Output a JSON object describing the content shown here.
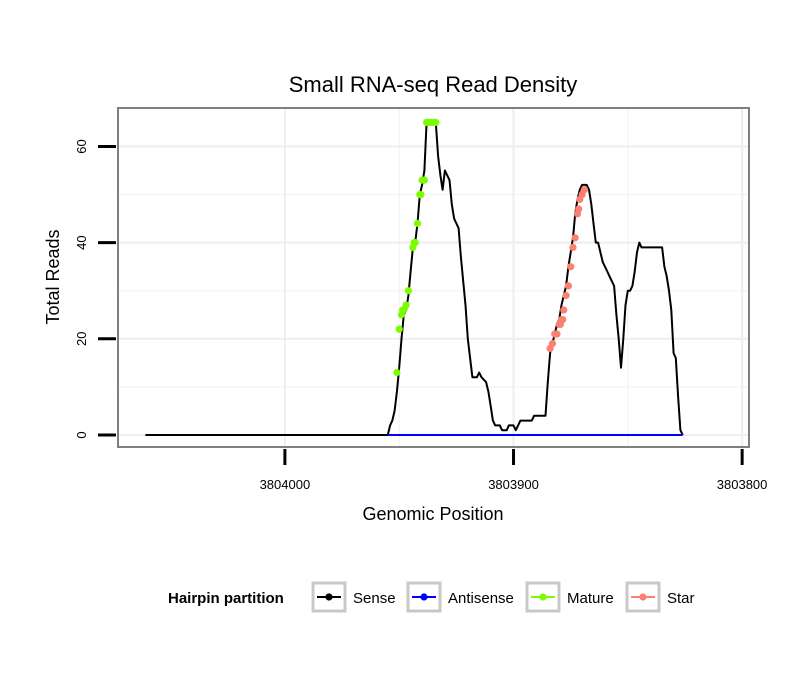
{
  "chart_data": {
    "type": "line",
    "title": "Small RNA-seq Read Density",
    "xlabel": "Genomic Position",
    "ylabel": "Total Reads",
    "x_reversed": true,
    "xlim": [
      3804073,
      3803797
    ],
    "ylim": [
      -2.5,
      68
    ],
    "x_ticks": [
      3804000,
      3803900,
      3803800
    ],
    "x_tick_labels": [
      "3804000",
      "3803900",
      "3803800"
    ],
    "y_ticks": [
      0,
      20,
      40,
      60
    ],
    "y_tick_labels": [
      "0",
      "20",
      "40",
      "60"
    ],
    "grid": true,
    "legend": {
      "title": "Hairpin partition",
      "position": "bottom",
      "entries": [
        {
          "label": "Sense",
          "color": "#000000"
        },
        {
          "label": "Antisense",
          "color": "#0000ff"
        },
        {
          "label": "Mature",
          "color": "#7cfc00"
        },
        {
          "label": "Star",
          "color": "#fa8072"
        }
      ]
    },
    "series": [
      {
        "name": "Sense",
        "color": "#000000",
        "points": [
          [
            3804061,
            0
          ],
          [
            3803955,
            0
          ],
          [
            3803954,
            2
          ],
          [
            3803953,
            3
          ],
          [
            3803952,
            5
          ],
          [
            3803951,
            9
          ],
          [
            3803950,
            14
          ],
          [
            3803949,
            20
          ],
          [
            3803948,
            25
          ],
          [
            3803947,
            26
          ],
          [
            3803946,
            29
          ],
          [
            3803945,
            34
          ],
          [
            3803944,
            39
          ],
          [
            3803943,
            40
          ],
          [
            3803942,
            44
          ],
          [
            3803941,
            50
          ],
          [
            3803940,
            52
          ],
          [
            3803939,
            55
          ],
          [
            3803938,
            65
          ],
          [
            3803934,
            65
          ],
          [
            3803933,
            58
          ],
          [
            3803932,
            54
          ],
          [
            3803931,
            51
          ],
          [
            3803930,
            55
          ],
          [
            3803928,
            53
          ],
          [
            3803927,
            48
          ],
          [
            3803926,
            45
          ],
          [
            3803924,
            43
          ],
          [
            3803923,
            37
          ],
          [
            3803922,
            32
          ],
          [
            3803921,
            27
          ],
          [
            3803920,
            20
          ],
          [
            3803919,
            16
          ],
          [
            3803918,
            12
          ],
          [
            3803916,
            12
          ],
          [
            3803915,
            13
          ],
          [
            3803914,
            12
          ],
          [
            3803912,
            11
          ],
          [
            3803911,
            9
          ],
          [
            3803910,
            6
          ],
          [
            3803909,
            3
          ],
          [
            3803908,
            2
          ],
          [
            3803906,
            2
          ],
          [
            3803905,
            1
          ],
          [
            3803903,
            1
          ],
          [
            3803902,
            2
          ],
          [
            3803900,
            2
          ],
          [
            3803899,
            1
          ],
          [
            3803898,
            2
          ],
          [
            3803897,
            3
          ],
          [
            3803892,
            3
          ],
          [
            3803891,
            4
          ],
          [
            3803886,
            4
          ],
          [
            3803885,
            11
          ],
          [
            3803884,
            17
          ],
          [
            3803883,
            19
          ],
          [
            3803882,
            21
          ],
          [
            3803881,
            23
          ],
          [
            3803880,
            24
          ],
          [
            3803879,
            27
          ],
          [
            3803877,
            31
          ],
          [
            3803876,
            35
          ],
          [
            3803875,
            38
          ],
          [
            3803874,
            41
          ],
          [
            3803873,
            46
          ],
          [
            3803872,
            49
          ],
          [
            3803871,
            51
          ],
          [
            3803870,
            52
          ],
          [
            3803868,
            52
          ],
          [
            3803867,
            51
          ],
          [
            3803866,
            48
          ],
          [
            3803865,
            44
          ],
          [
            3803864,
            40
          ],
          [
            3803863,
            40
          ],
          [
            3803862,
            38
          ],
          [
            3803861,
            36
          ],
          [
            3803859,
            34
          ],
          [
            3803858,
            33
          ],
          [
            3803857,
            32
          ],
          [
            3803856,
            31
          ],
          [
            3803855,
            25
          ],
          [
            3803854,
            20
          ],
          [
            3803853,
            14
          ],
          [
            3803852,
            20
          ],
          [
            3803851,
            27
          ],
          [
            3803850,
            30
          ],
          [
            3803849,
            30
          ],
          [
            3803848,
            31
          ],
          [
            3803847,
            34
          ],
          [
            3803846,
            38
          ],
          [
            3803845,
            40
          ],
          [
            3803844,
            39
          ],
          [
            3803835,
            39
          ],
          [
            3803834,
            35
          ],
          [
            3803833,
            33
          ],
          [
            3803832,
            30
          ],
          [
            3803831,
            26
          ],
          [
            3803830,
            17
          ],
          [
            3803829,
            16
          ],
          [
            3803828,
            8
          ],
          [
            3803827,
            1
          ],
          [
            3803826,
            0
          ]
        ]
      },
      {
        "name": "Antisense",
        "color": "#0000ff",
        "points": [
          [
            3803955,
            0
          ],
          [
            3803826,
            0
          ]
        ]
      },
      {
        "name": "Mature",
        "color": "#7cfc00",
        "points": [
          [
            3803951,
            13
          ],
          [
            3803950,
            22
          ],
          [
            3803949,
            25
          ],
          [
            3803948.5,
            26
          ],
          [
            3803948,
            26
          ],
          [
            3803947,
            27
          ],
          [
            3803946,
            30
          ],
          [
            3803944,
            39
          ],
          [
            3803943.5,
            40
          ],
          [
            3803943,
            40
          ],
          [
            3803942,
            44
          ],
          [
            3803941,
            50
          ],
          [
            3803940.5,
            50
          ],
          [
            3803940,
            53
          ],
          [
            3803939,
            53
          ],
          [
            3803938,
            65
          ],
          [
            3803937,
            65
          ],
          [
            3803936,
            65
          ],
          [
            3803935,
            65
          ],
          [
            3803934,
            65
          ]
        ]
      },
      {
        "name": "Star",
        "color": "#fa8072",
        "points": [
          [
            3803884,
            18
          ],
          [
            3803883,
            19
          ],
          [
            3803882,
            21
          ],
          [
            3803881,
            21
          ],
          [
            3803880,
            23
          ],
          [
            3803879,
            24
          ],
          [
            3803879.5,
            23
          ],
          [
            3803878.5,
            24
          ],
          [
            3803878,
            26
          ],
          [
            3803877,
            29
          ],
          [
            3803876,
            31
          ],
          [
            3803875,
            35
          ],
          [
            3803874,
            39
          ],
          [
            3803873,
            41
          ],
          [
            3803872,
            46
          ],
          [
            3803871.5,
            47
          ],
          [
            3803871,
            49
          ],
          [
            3803870,
            50
          ],
          [
            3803869,
            51
          ]
        ]
      }
    ]
  }
}
